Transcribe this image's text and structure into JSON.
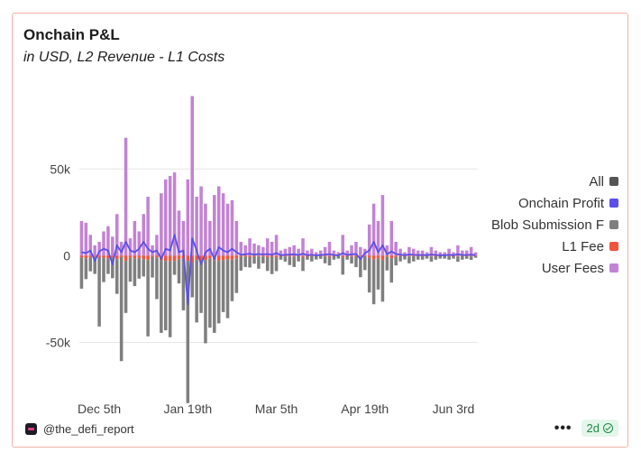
{
  "header": {
    "title": "Onchain P&L",
    "subtitle": "in USD, L2 Revenue - L1 Costs"
  },
  "footer": {
    "author": "@the_defi_report",
    "more_label": "•••",
    "age_badge": "2d"
  },
  "legend": [
    {
      "label": "All",
      "color": "#555555"
    },
    {
      "label": "Onchain Profit",
      "color": "#5a4fe8"
    },
    {
      "label": "Blob Submission F",
      "color": "#7f7f7f"
    },
    {
      "label": "L1 Fee",
      "color": "#f0553b"
    },
    {
      "label": "User Fees",
      "color": "#c283d4"
    }
  ],
  "chart_data": {
    "type": "bar",
    "ylim": [
      -82000,
      98000
    ],
    "y_ticks": [
      {
        "value": 50000,
        "label": "50k"
      },
      {
        "value": 0,
        "label": "0"
      },
      {
        "value": -50000,
        "label": "-50k"
      }
    ],
    "x_ticks": [
      {
        "index": 4,
        "label": "Dec 5th"
      },
      {
        "index": 24,
        "label": "Jan 19th"
      },
      {
        "index": 44,
        "label": "Mar 5th"
      },
      {
        "index": 64,
        "label": "Apr 19th"
      },
      {
        "index": 84,
        "label": "Jun 3rd"
      }
    ],
    "series": [
      {
        "name": "User Fees",
        "color": "#c283d4",
        "values": [
          20000,
          19000,
          12000,
          6000,
          8000,
          14000,
          17000,
          11000,
          24000,
          8000,
          68000,
          10000,
          20000,
          14000,
          24000,
          34000,
          6000,
          12000,
          36000,
          44000,
          46000,
          48000,
          26000,
          20000,
          44000,
          92000,
          34000,
          40000,
          30000,
          20000,
          35000,
          40000,
          36000,
          30000,
          32000,
          20000,
          8000,
          6000,
          10000,
          7000,
          6000,
          5000,
          10000,
          8000,
          12000,
          3000,
          4000,
          5000,
          6000,
          4000,
          10000,
          3000,
          4000,
          2000,
          3000,
          5000,
          8000,
          3000,
          2000,
          12000,
          3000,
          6000,
          8000,
          5000,
          4000,
          18000,
          30000,
          20000,
          35000,
          6000,
          20000,
          8000,
          4000,
          2000,
          5000,
          4000,
          3000,
          3000,
          2000,
          5000,
          3000,
          2000,
          2000,
          4000,
          2000,
          6000,
          3000,
          3000,
          5000,
          2000
        ]
      },
      {
        "name": "L1 Fee",
        "color": "#f0553b",
        "values": [
          -1000,
          -1500,
          -1000,
          -500,
          -800,
          -1200,
          -1500,
          -1000,
          -2000,
          -800,
          -3000,
          -1000,
          -1500,
          -1200,
          -2000,
          -2500,
          -600,
          -1000,
          -2500,
          -3000,
          -3000,
          -3000,
          -2000,
          -1500,
          -3000,
          -4000,
          -2500,
          -3000,
          -2500,
          -1500,
          -2500,
          -3000,
          -2500,
          -2000,
          -2200,
          -1500,
          -600,
          -500,
          -800,
          -600,
          -500,
          -400,
          -800,
          -600,
          -900,
          -300,
          -400,
          -400,
          -500,
          -300,
          -800,
          -300,
          -300,
          -200,
          -300,
          -400,
          -600,
          -300,
          -200,
          -900,
          -300,
          -500,
          -600,
          -400,
          -300,
          -1200,
          -2000,
          -1500,
          -2500,
          -500,
          -1500,
          -600,
          -300,
          -200,
          -400,
          -300,
          -300,
          -300,
          -200,
          -400,
          -300,
          -200,
          -200,
          -300,
          -200,
          -500,
          -300,
          -300,
          -400,
          -200
        ]
      },
      {
        "name": "Blob Submission F",
        "color": "#7f7f7f",
        "values": [
          -18000,
          -12000,
          -8000,
          -10000,
          -40000,
          -14000,
          -9000,
          -12000,
          -20000,
          -60000,
          -30000,
          -14000,
          -16000,
          -12000,
          -10000,
          -44000,
          -12000,
          -24000,
          -42000,
          -40000,
          -44000,
          -8000,
          -14000,
          -30000,
          -82000,
          -20000,
          -36000,
          -30000,
          -48000,
          -40000,
          -42000,
          -36000,
          -30000,
          -34000,
          -24000,
          -20000,
          -8000,
          -6000,
          -6000,
          -4000,
          -7000,
          -4000,
          -8000,
          -10000,
          -8000,
          -2000,
          -3000,
          -5000,
          -6000,
          -3000,
          -8000,
          -2000,
          -3000,
          -2000,
          -1500,
          -4000,
          -5000,
          -2000,
          -1500,
          -10000,
          -2000,
          -4000,
          -6000,
          -12000,
          -8000,
          -20000,
          -26000,
          -18000,
          -24000,
          -8000,
          -14000,
          -5000,
          -3000,
          -2000,
          -4000,
          -3000,
          -2000,
          -2000,
          -1500,
          -3000,
          -2000,
          -1500,
          -1500,
          -2000,
          -1500,
          -3000,
          -2000,
          -1500,
          -2000,
          -1000
        ]
      },
      {
        "name": "Onchain Profit",
        "color": "#5a4fe8",
        "values": [
          2000,
          1500,
          3000,
          -3000,
          2500,
          4000,
          3000,
          -5000,
          6000,
          2000,
          8000,
          3000,
          2000,
          4000,
          8000,
          4000,
          2000,
          3000,
          -2000,
          4000,
          3000,
          12000,
          2000,
          3000,
          -28000,
          10000,
          3000,
          -5000,
          2000,
          4000,
          -2000,
          5000,
          3000,
          2000,
          4000,
          2000,
          500,
          800,
          1200,
          600,
          1000,
          700,
          1000,
          500,
          1500,
          300,
          500,
          600,
          800,
          400,
          1200,
          300,
          500,
          200,
          400,
          600,
          900,
          400,
          200,
          1500,
          400,
          800,
          1000,
          -2000,
          1500,
          3000,
          8000,
          2000,
          6000,
          800,
          2500,
          1000,
          600,
          300,
          700,
          500,
          400,
          400,
          300,
          700,
          400,
          300,
          300,
          500,
          300,
          800,
          400,
          400,
          600,
          300
        ]
      }
    ]
  }
}
